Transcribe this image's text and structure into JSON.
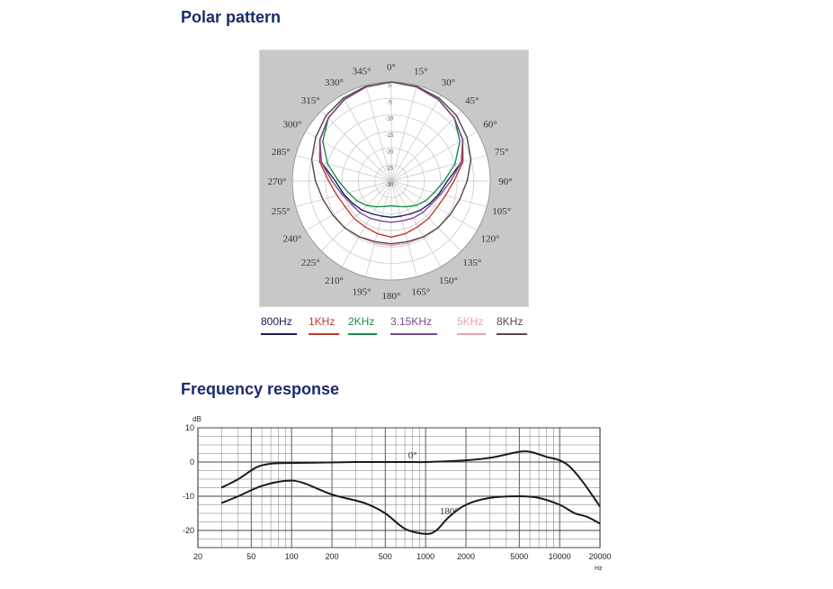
{
  "headings": {
    "polar": "Polar pattern",
    "frequency": "Frequency response"
  },
  "chart_data": [
    {
      "type": "polar",
      "title": "Polar pattern",
      "angle_labels": [
        "0°",
        "15°",
        "30°",
        "45°",
        "60°",
        "75°",
        "90°",
        "105°",
        "120°",
        "135°",
        "150°",
        "165°",
        "180°",
        "195°",
        "210°",
        "225°",
        "240°",
        "255°",
        "270°",
        "285°",
        "300°",
        "315°",
        "330°",
        "345°"
      ],
      "radial_labels": [
        "0",
        "-5",
        "-10",
        "-15",
        "-20",
        "-25",
        "-30"
      ],
      "r_range": [
        -30,
        0
      ],
      "series": [
        {
          "name": "800Hz",
          "color": "#1b1b55",
          "angles": [
            0,
            15,
            30,
            45,
            60,
            75,
            90,
            105,
            120,
            135,
            150,
            165,
            180
          ],
          "values": [
            0,
            -0.5,
            -1.5,
            -3,
            -5,
            -8,
            -13,
            -15,
            -16.5,
            -17.5,
            -18.5,
            -19,
            -19
          ]
        },
        {
          "name": "1KHz",
          "color": "#c0392b",
          "angles": [
            0,
            15,
            30,
            45,
            60,
            75,
            90,
            105,
            120,
            135,
            150,
            165,
            180
          ],
          "values": [
            0,
            -0.5,
            -1.5,
            -3,
            -5,
            -7.5,
            -11,
            -13,
            -14,
            -14,
            -14,
            -13.5,
            -13
          ]
        },
        {
          "name": "2KHz",
          "color": "#1e8a4c",
          "angles": [
            0,
            15,
            30,
            45,
            60,
            75,
            90,
            105,
            120,
            135,
            150,
            165,
            180
          ],
          "values": [
            0,
            -0.5,
            -1.5,
            -3,
            -6,
            -10,
            -14,
            -16.5,
            -18,
            -19.5,
            -21,
            -22,
            -22.5
          ]
        },
        {
          "name": "3.15KHz",
          "color": "#7b4a91",
          "angles": [
            0,
            15,
            30,
            45,
            60,
            75,
            90,
            105,
            120,
            135,
            150,
            165,
            180
          ],
          "values": [
            0,
            -0.5,
            -1.5,
            -3,
            -5,
            -8,
            -12,
            -14.5,
            -16,
            -16.5,
            -17,
            -17.5,
            -17.5
          ]
        },
        {
          "name": "5KHz",
          "color": "#e8a3b0",
          "angles": [
            0,
            15,
            30,
            45,
            60,
            75,
            90,
            105,
            120,
            135,
            150,
            165,
            180
          ],
          "values": [
            0,
            -0.3,
            -1,
            -2,
            -3.5,
            -5,
            -7,
            -8.5,
            -9.5,
            -10,
            -10.5,
            -10.5,
            -10.5
          ]
        },
        {
          "name": "8KHz",
          "color": "#5a4a48",
          "angles": [
            0,
            15,
            30,
            45,
            60,
            75,
            90,
            105,
            120,
            135,
            150,
            165,
            180
          ],
          "values": [
            0,
            -0.3,
            -1,
            -2,
            -3.5,
            -5,
            -7,
            -8.5,
            -9.5,
            -10,
            -10.5,
            -11,
            -11
          ]
        }
      ]
    },
    {
      "type": "line",
      "title": "Frequency response",
      "x_scale": "log",
      "xlim": [
        20,
        20000
      ],
      "ylim": [
        -25,
        10
      ],
      "x_tick_labels": [
        "20",
        "50",
        "100",
        "200",
        "500",
        "1000",
        "2000",
        "5000",
        "10000",
        "20000"
      ],
      "y_tick_labels": [
        "10",
        "0",
        "-10",
        "-20"
      ],
      "ylabel": "dB",
      "xunit": "Hz",
      "series": [
        {
          "name": "0°",
          "x": [
            30,
            40,
            55,
            70,
            90,
            150,
            300,
            500,
            800,
            1000,
            2000,
            3000,
            4000,
            5000,
            6000,
            8000,
            10000,
            12000,
            15000,
            20000
          ],
          "y": [
            -7.5,
            -5,
            -1.5,
            -0.5,
            -0.3,
            -0.2,
            0,
            0,
            0,
            0,
            0.5,
            1.2,
            2.2,
            3,
            3,
            1.5,
            0.5,
            -1.5,
            -6,
            -13
          ]
        },
        {
          "name": "180°",
          "x": [
            30,
            40,
            60,
            90,
            120,
            200,
            350,
            500,
            700,
            1000,
            1200,
            1500,
            2000,
            3000,
            5000,
            7000,
            10000,
            13000,
            16000,
            20000
          ],
          "y": [
            -12,
            -10,
            -7,
            -5.5,
            -6,
            -9.5,
            -12,
            -15,
            -19.5,
            -21,
            -20,
            -16,
            -12.5,
            -10.5,
            -10,
            -10.5,
            -12.5,
            -15,
            -16,
            -18
          ]
        }
      ]
    }
  ]
}
